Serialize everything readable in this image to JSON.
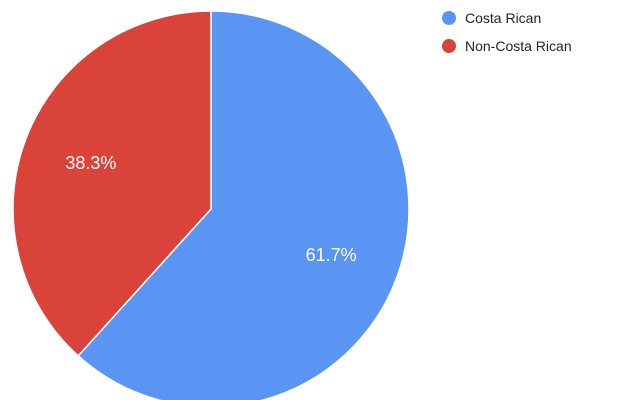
{
  "chart_data": {
    "type": "pie",
    "title": "",
    "categories": [
      "Costa Rican",
      "Non-Costa Rican"
    ],
    "values": [
      61.7,
      38.3
    ],
    "value_labels": [
      "61.7%",
      "38.3%"
    ],
    "unit": "%",
    "colors": [
      "#5b95f4",
      "#d9433a"
    ],
    "start_angle_deg": 0,
    "direction": "clockwise",
    "legend": {
      "position": "top-right",
      "items": [
        {
          "label": "Costa Rican",
          "color": "#5b95f4"
        },
        {
          "label": "Non-Costa Rican",
          "color": "#d9433a"
        }
      ]
    }
  }
}
